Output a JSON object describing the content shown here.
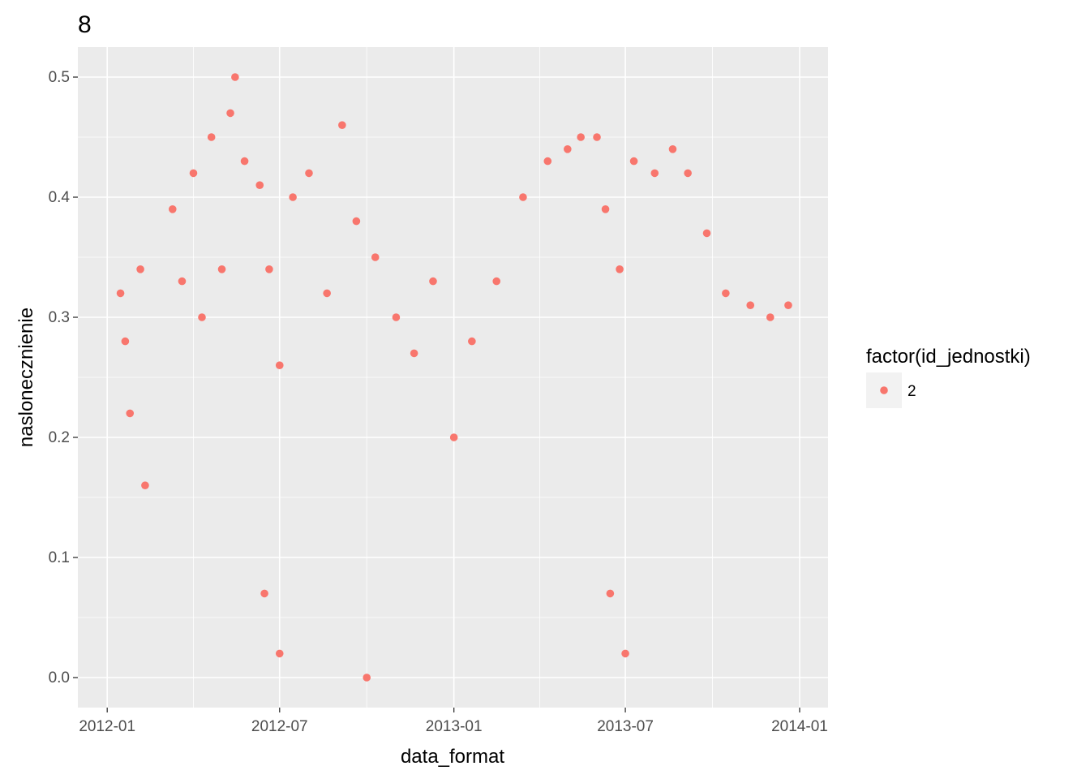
{
  "chart_data": {
    "type": "scatter",
    "title": "8",
    "xlabel": "data_format",
    "ylabel": "naslonecznienie",
    "x_ticks": [
      "2012-01",
      "2012-07",
      "2013-01",
      "2013-07",
      "2014-01"
    ],
    "y_ticks": [
      "0.0",
      "0.1",
      "0.2",
      "0.3",
      "0.4",
      "0.5"
    ],
    "xlim": [
      "2011-12-01",
      "2014-01-31"
    ],
    "ylim": [
      -0.025,
      0.525
    ],
    "grid": true,
    "legend": {
      "title": "factor(id_jednostki)",
      "position": "right",
      "entries": [
        {
          "label": "2",
          "color": "#F8766D"
        }
      ]
    },
    "series": [
      {
        "color": "#F8766D",
        "points": [
          [
            "2012-01-15",
            0.32
          ],
          [
            "2012-01-20",
            0.28
          ],
          [
            "2012-01-25",
            0.22
          ],
          [
            "2012-02-05",
            0.34
          ],
          [
            "2012-02-10",
            0.16
          ],
          [
            "2012-03-10",
            0.39
          ],
          [
            "2012-03-20",
            0.33
          ],
          [
            "2012-04-01",
            0.42
          ],
          [
            "2012-04-10",
            0.3
          ],
          [
            "2012-04-20",
            0.45
          ],
          [
            "2012-05-01",
            0.34
          ],
          [
            "2012-05-10",
            0.47
          ],
          [
            "2012-05-15",
            0.5
          ],
          [
            "2012-05-25",
            0.43
          ],
          [
            "2012-06-10",
            0.41
          ],
          [
            "2012-06-20",
            0.34
          ],
          [
            "2012-07-01",
            0.26
          ],
          [
            "2012-07-15",
            0.4
          ],
          [
            "2012-08-01",
            0.42
          ],
          [
            "2012-08-20",
            0.32
          ],
          [
            "2012-09-05",
            0.46
          ],
          [
            "2012-09-20",
            0.38
          ],
          [
            "2012-10-10",
            0.35
          ],
          [
            "2012-11-01",
            0.3
          ],
          [
            "2012-11-20",
            0.27
          ],
          [
            "2012-12-10",
            0.33
          ],
          [
            "2013-01-01",
            0.2
          ],
          [
            "2013-01-20",
            0.28
          ],
          [
            "2013-02-15",
            0.33
          ],
          [
            "2013-03-15",
            0.4
          ],
          [
            "2013-04-10",
            0.43
          ],
          [
            "2013-05-01",
            0.44
          ],
          [
            "2013-05-15",
            0.45
          ],
          [
            "2013-06-01",
            0.45
          ],
          [
            "2013-06-10",
            0.39
          ],
          [
            "2013-06-25",
            0.34
          ],
          [
            "2013-07-10",
            0.43
          ],
          [
            "2013-08-01",
            0.42
          ],
          [
            "2013-08-20",
            0.44
          ],
          [
            "2013-09-05",
            0.42
          ],
          [
            "2013-09-25",
            0.37
          ],
          [
            "2013-10-15",
            0.32
          ],
          [
            "2013-11-10",
            0.31
          ],
          [
            "2013-12-01",
            0.3
          ],
          [
            "2013-12-20",
            0.31
          ],
          [
            "2012-06-15",
            0.07
          ],
          [
            "2013-06-15",
            0.07
          ],
          [
            "2012-07-01",
            0.02
          ],
          [
            "2013-07-01",
            0.02
          ],
          [
            "2012-10-01",
            0.0
          ]
        ]
      }
    ]
  }
}
